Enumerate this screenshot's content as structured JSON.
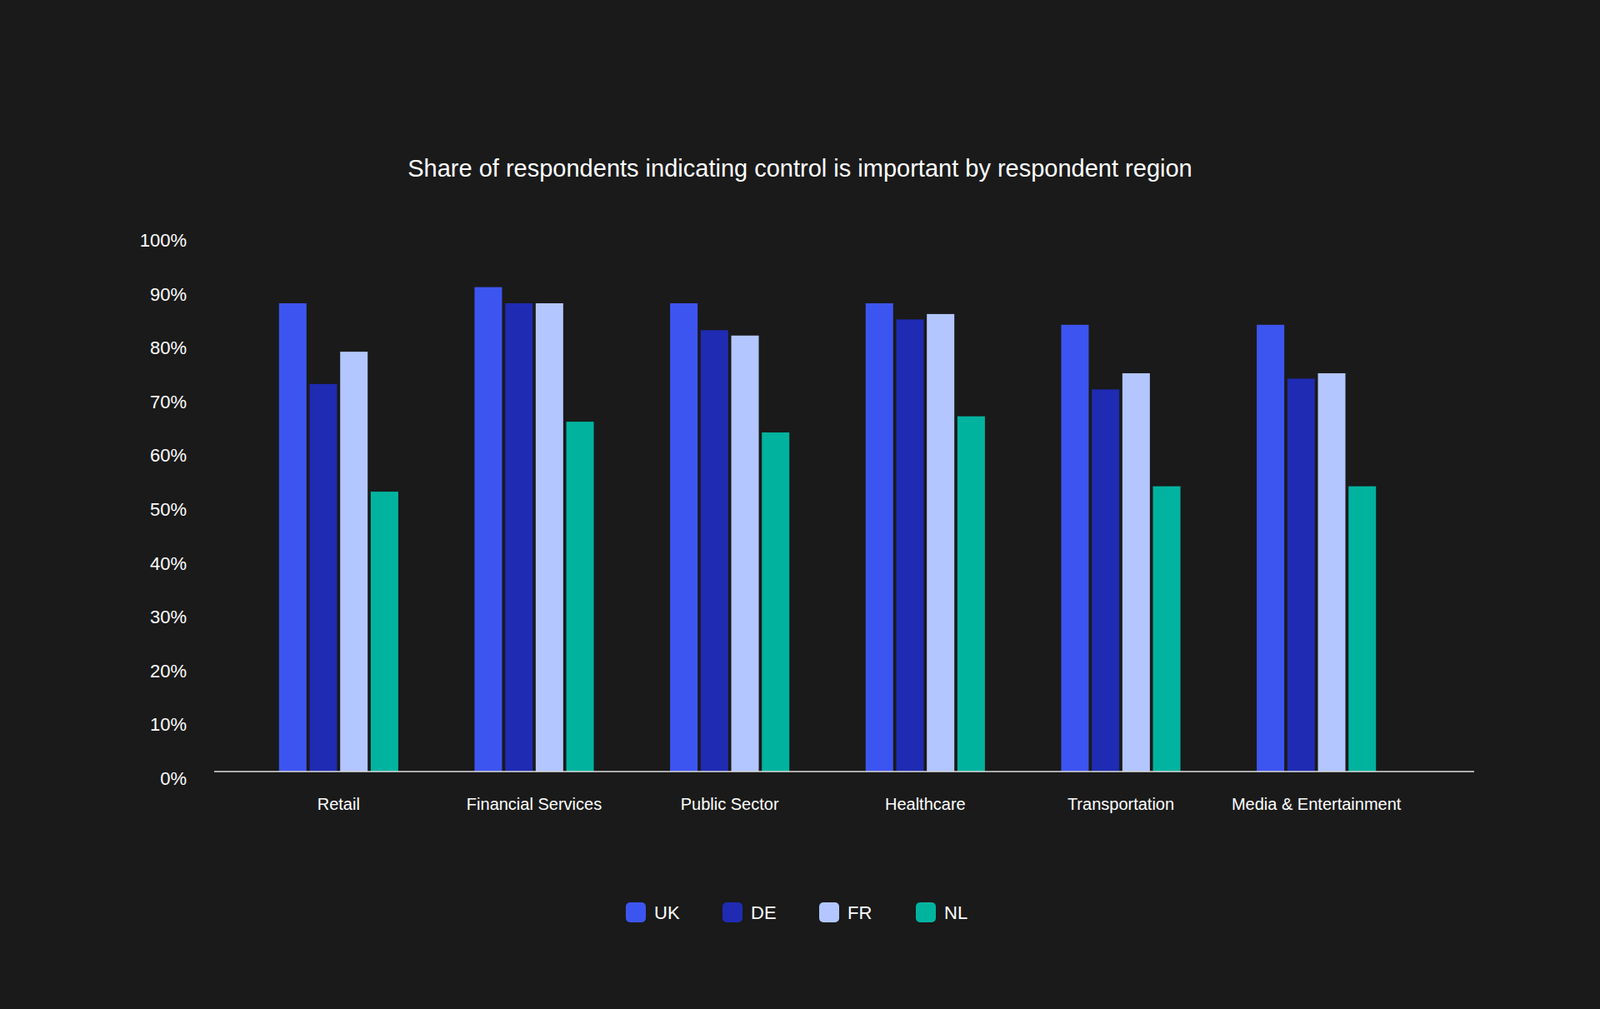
{
  "chart_data": {
    "type": "bar",
    "title": "Share of respondents indicating control is important by respondent region",
    "categories": [
      "Retail",
      "Financial Services",
      "Public Sector",
      "Healthcare",
      "Transportation",
      "Media & Entertainment"
    ],
    "series": [
      {
        "name": "UK",
        "color": "#3d55f0",
        "values": [
          87,
          90,
          87,
          87,
          83,
          83
        ]
      },
      {
        "name": "DE",
        "color": "#1f2bb3",
        "values": [
          72,
          87,
          82,
          84,
          71,
          73
        ]
      },
      {
        "name": "FR",
        "color": "#b3c6ff",
        "values": [
          78,
          87,
          81,
          85,
          74,
          74
        ]
      },
      {
        "name": "NL",
        "color": "#00b39f",
        "values": [
          52,
          65,
          63,
          66,
          53,
          53
        ]
      }
    ],
    "ylim": [
      0,
      100
    ],
    "yticks": [
      {
        "value": 0,
        "label": "0%"
      },
      {
        "value": 10,
        "label": "10%"
      },
      {
        "value": 20,
        "label": "20%"
      },
      {
        "value": 30,
        "label": "30%"
      },
      {
        "value": 40,
        "label": "40%"
      },
      {
        "value": 50,
        "label": "50%"
      },
      {
        "value": 60,
        "label": "60%"
      },
      {
        "value": 70,
        "label": "70%"
      },
      {
        "value": 80,
        "label": "80%"
      },
      {
        "value": 90,
        "label": "90%"
      },
      {
        "value": 100,
        "label": "100%"
      }
    ],
    "grid": false,
    "legend": "bottom"
  }
}
